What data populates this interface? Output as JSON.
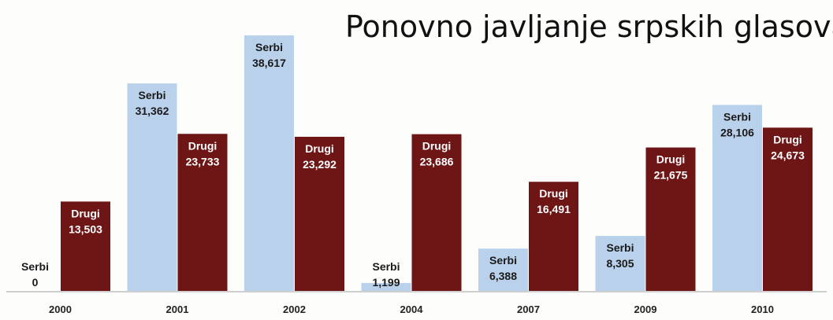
{
  "chart_data": {
    "type": "bar",
    "title": "Ponovno javljanje srpskih glasova",
    "categories": [
      "2000",
      "2001",
      "2002",
      "2004",
      "2007",
      "2009",
      "2010"
    ],
    "series": [
      {
        "name": "Serbi",
        "values": [
          0,
          31362,
          38617,
          1199,
          6388,
          8305,
          28106
        ],
        "labels": [
          "0",
          "31,362",
          "38,617",
          "1,199",
          "6,388",
          "8,305",
          "28,106"
        ],
        "color": "#b9d1ea",
        "label_color": "#1a1a1a"
      },
      {
        "name": "Drugi",
        "values": [
          13503,
          23733,
          23292,
          23686,
          16491,
          21675,
          24673
        ],
        "labels": [
          "13,503",
          "23,733",
          "23,292",
          "23,686",
          "16,491",
          "21,675",
          "24,673"
        ],
        "color": "#6e1616",
        "label_color": "#ffffff"
      }
    ],
    "xlabel": "",
    "ylabel": "",
    "ylim": [
      0,
      40000
    ],
    "grid": false,
    "legend": "none"
  }
}
